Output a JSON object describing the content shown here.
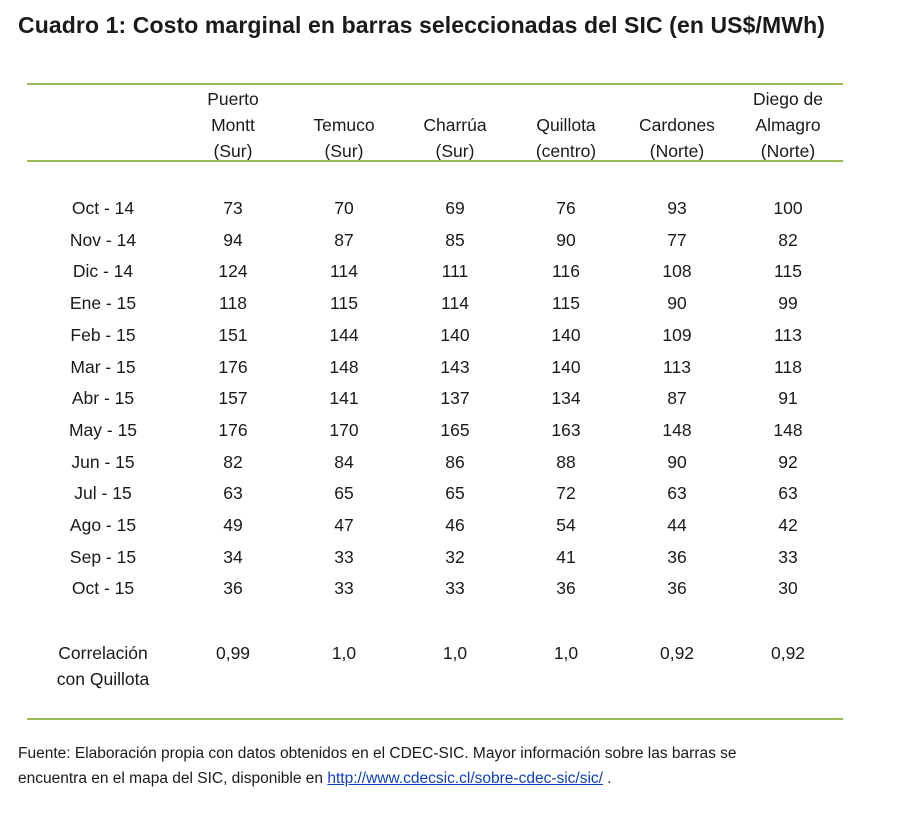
{
  "title": "Cuadro 1: Costo marginal en barras seleccionadas del SIC (en US$/MWh)",
  "columns": [
    {
      "lines": [
        "Puerto",
        "Montt",
        "(Sur)"
      ]
    },
    {
      "lines": [
        "",
        "Temuco",
        "(Sur)"
      ]
    },
    {
      "lines": [
        "",
        "Charrúa",
        "(Sur)"
      ]
    },
    {
      "lines": [
        "",
        "Quillota",
        "(centro)"
      ]
    },
    {
      "lines": [
        "",
        "Cardones",
        "(Norte)"
      ]
    },
    {
      "lines": [
        "Diego de",
        "Almagro",
        "(Norte)"
      ]
    }
  ],
  "rows": [
    {
      "label": "Oct - 14",
      "values": [
        "73",
        "70",
        "69",
        "76",
        "93",
        "100"
      ]
    },
    {
      "label": "Nov - 14",
      "values": [
        "94",
        "87",
        "85",
        "90",
        "77",
        "82"
      ]
    },
    {
      "label": "Dic - 14",
      "values": [
        "124",
        "114",
        "111",
        "116",
        "108",
        "115"
      ]
    },
    {
      "label": "Ene - 15",
      "values": [
        "118",
        "115",
        "114",
        "115",
        "90",
        "99"
      ]
    },
    {
      "label": "Feb - 15",
      "values": [
        "151",
        "144",
        "140",
        "140",
        "109",
        "113"
      ]
    },
    {
      "label": "Mar - 15",
      "values": [
        "176",
        "148",
        "143",
        "140",
        "113",
        "118"
      ]
    },
    {
      "label": "Abr - 15",
      "values": [
        "157",
        "141",
        "137",
        "134",
        "87",
        "91"
      ]
    },
    {
      "label": "May - 15",
      "values": [
        "176",
        "170",
        "165",
        "163",
        "148",
        "148"
      ]
    },
    {
      "label": "Jun - 15",
      "values": [
        "82",
        "84",
        "86",
        "88",
        "90",
        "92"
      ]
    },
    {
      "label": "Jul - 15",
      "values": [
        "63",
        "65",
        "65",
        "72",
        "63",
        "63"
      ]
    },
    {
      "label": "Ago - 15",
      "values": [
        "49",
        "47",
        "46",
        "54",
        "44",
        "42"
      ]
    },
    {
      "label": "Sep - 15",
      "values": [
        "34",
        "33",
        "32",
        "41",
        "36",
        "33"
      ]
    },
    {
      "label": "Oct - 15",
      "values": [
        "36",
        "33",
        "33",
        "36",
        "36",
        "30"
      ]
    }
  ],
  "correlation": {
    "label_lines": [
      "Correlación",
      "con Quillota"
    ],
    "values": [
      "0,99",
      "1,0",
      "1,0",
      "1,0",
      "0,92",
      "0,92"
    ]
  },
  "footnote": {
    "line1": "Fuente: Elaboración propia con datos obtenidos en el CDEC-SIC. Mayor información sobre las barras se",
    "line2_prefix": "encuentra en el  mapa del SIC, disponible en ",
    "link_text": "http://www.cdecsic.cl/sobre-cdec-sic/sic/",
    "line2_suffix": " ."
  },
  "colors": {
    "rule": "#9bbb59",
    "link": "#0b3fc8",
    "text": "#1a1a1a"
  }
}
